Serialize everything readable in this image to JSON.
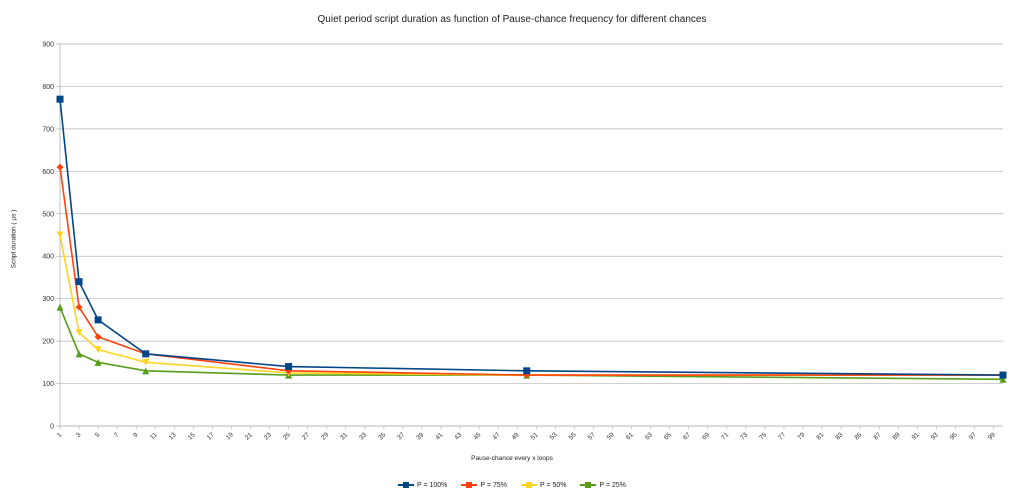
{
  "chart_data": {
    "type": "line",
    "title": "Quiet period script duration as function of Pause-chance frequency for different chances",
    "xlabel": "Pause-chance every x loops",
    "ylabel": "Script duration ( µs )",
    "x_ticks": [
      1,
      3,
      5,
      7,
      9,
      11,
      13,
      15,
      17,
      19,
      21,
      23,
      25,
      27,
      29,
      31,
      33,
      35,
      37,
      39,
      41,
      43,
      45,
      47,
      49,
      51,
      53,
      55,
      57,
      59,
      61,
      63,
      65,
      67,
      69,
      71,
      73,
      75,
      77,
      79,
      81,
      83,
      85,
      87,
      89,
      91,
      93,
      95,
      97,
      99
    ],
    "xlim": [
      1,
      100
    ],
    "y_ticks": [
      0,
      100,
      200,
      300,
      400,
      500,
      600,
      700,
      800,
      900
    ],
    "ylim": [
      0,
      900
    ],
    "grid": "horizontal",
    "legend_position": "bottom",
    "x": [
      1,
      3,
      5,
      10,
      25,
      50,
      100
    ],
    "series": [
      {
        "name": "P = 100%",
        "color": "#004586",
        "marker": "square",
        "values": [
          770,
          340,
          250,
          170,
          140,
          130,
          120
        ]
      },
      {
        "name": "P = 75%",
        "color": "#ff420e",
        "marker": "diamond",
        "values": [
          610,
          280,
          210,
          170,
          130,
          120,
          120
        ]
      },
      {
        "name": "P = 50%",
        "color": "#ffd320",
        "marker": "triangle-down",
        "values": [
          450,
          220,
          180,
          150,
          125,
          120,
          120
        ]
      },
      {
        "name": "P = 25%",
        "color": "#579d1c",
        "marker": "triangle-up",
        "values": [
          280,
          170,
          150,
          130,
          120,
          120,
          110
        ]
      }
    ]
  }
}
